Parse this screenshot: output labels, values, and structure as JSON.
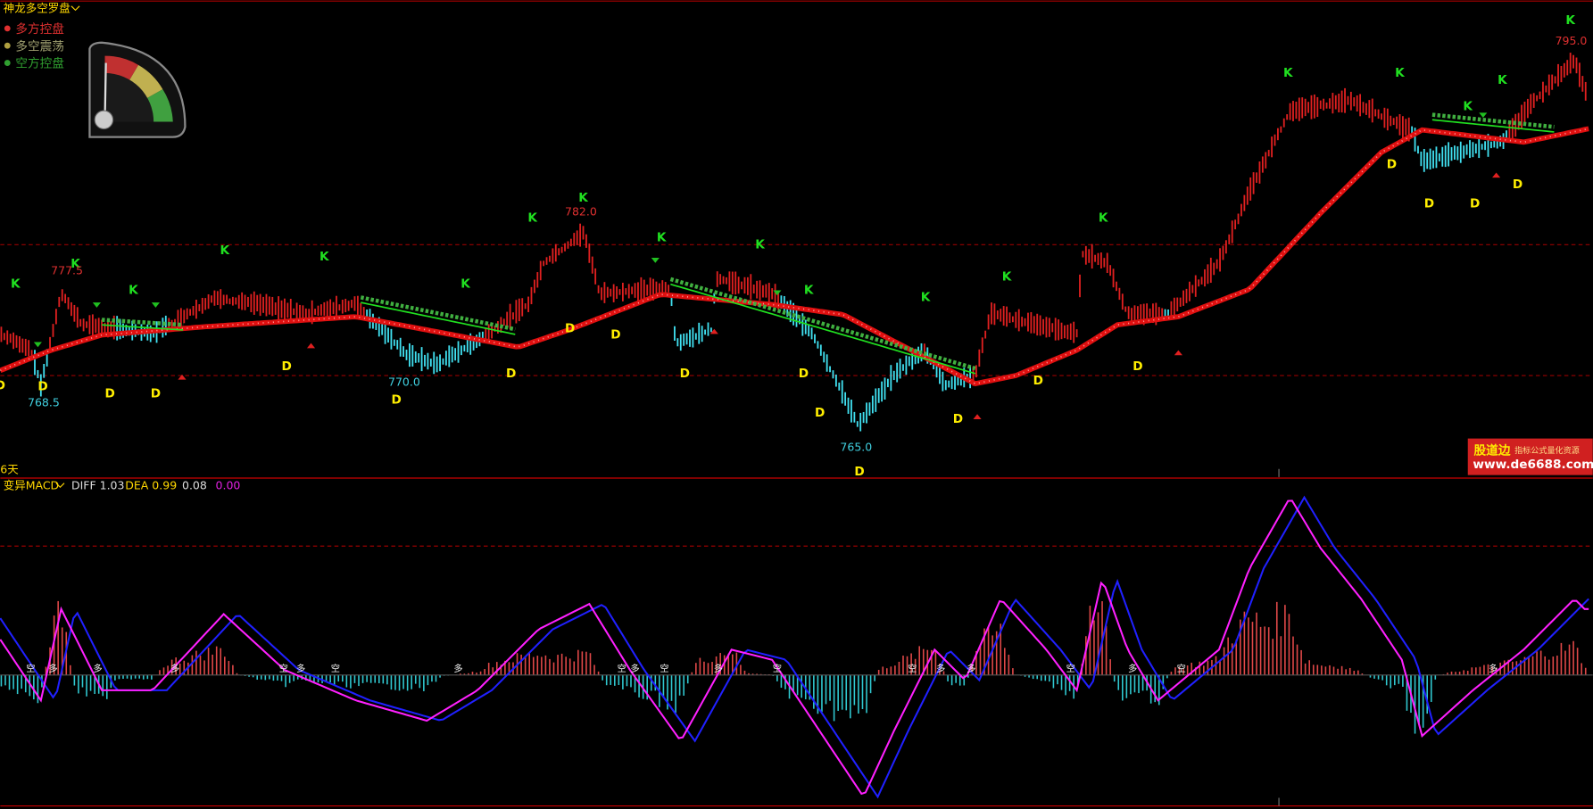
{
  "header": {
    "title": "神龙多空罗盘"
  },
  "legend": [
    "多方控盘",
    "多空震荡",
    "空方控盘"
  ],
  "price_labels": {
    "high_1": "777.5",
    "high_2": "782.0",
    "high_3": "795.0",
    "low_1": "768.5",
    "low_2": "770.0",
    "low_3": "765.0"
  },
  "k_signals": [
    "K",
    "K",
    "K",
    "K",
    "K",
    "K",
    "K",
    "K",
    "K",
    "K",
    "K",
    "K",
    "K",
    "K",
    "K",
    "K",
    "K",
    "K",
    "K"
  ],
  "d_signals": [
    "D",
    "D",
    "D",
    "D",
    "D",
    "D",
    "D",
    "D",
    "D",
    "D",
    "D",
    "D",
    "D",
    "D",
    "D",
    "D",
    "D",
    "D",
    "D",
    "D"
  ],
  "period_label": "6天",
  "watermark": {
    "brand": "股道边",
    "tagline": "指标公式量化资源",
    "url": "www.de6688.com"
  },
  "macd": {
    "title": "变异MACD",
    "diff": "DIFF 1.03",
    "dea": "DEA 0.99",
    "macd": "0.08",
    "extra": "0.00",
    "markers": [
      "空",
      "多",
      "多",
      "多",
      "空",
      "多",
      "空",
      "多",
      "空",
      "多",
      "空",
      "多",
      "空",
      "空",
      "多",
      "多",
      "空",
      "多",
      "空",
      "多"
    ]
  }
}
